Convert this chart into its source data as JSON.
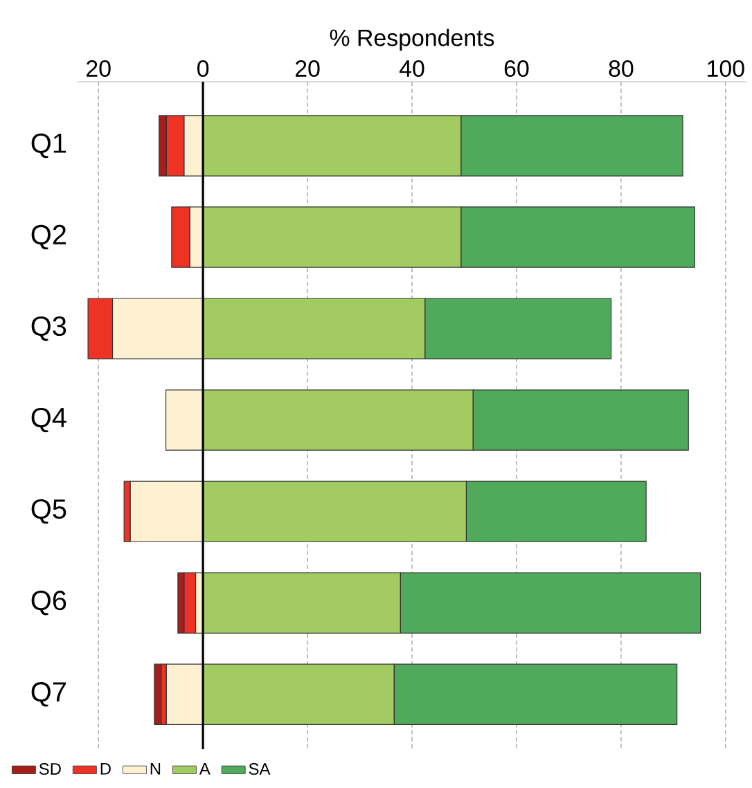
{
  "chart_data": {
    "type": "bar",
    "orientation": "horizontal",
    "xlabel": "% Respondents",
    "categories": [
      "Q1",
      "Q2",
      "Q3",
      "Q4",
      "Q5",
      "Q6",
      "Q7"
    ],
    "series": [
      {
        "name": "SD",
        "color": "#a51e1a",
        "values": [
          1.4,
          null,
          null,
          null,
          null,
          1.2,
          1.3
        ],
        "base": [
          -8.4,
          null,
          null,
          null,
          null,
          -4.8,
          -9.3
        ]
      },
      {
        "name": "D",
        "color": "#ee3224",
        "values": [
          3.4,
          3.5,
          4.7,
          null,
          1.2,
          2.2,
          1.0
        ],
        "base": [
          -7.0,
          -6.0,
          -22.0,
          null,
          -15.1,
          -3.6,
          -8.0
        ]
      },
      {
        "name": "N",
        "color": "#fdf1d2",
        "values": [
          3.6,
          2.5,
          17.3,
          7.1,
          13.9,
          1.4,
          7.0
        ],
        "base": [
          -3.6,
          -2.5,
          -17.3,
          -7.1,
          -13.9,
          -1.4,
          -7.0
        ]
      },
      {
        "name": "A",
        "color": "#a2cb62",
        "values": [
          49.4,
          49.4,
          42.5,
          51.7,
          50.4,
          37.8,
          36.6
        ],
        "base": [
          0,
          0,
          0,
          0,
          0,
          0,
          0
        ]
      },
      {
        "name": "SA",
        "color": "#4fab5b",
        "values": [
          42.4,
          44.7,
          35.6,
          41.2,
          34.4,
          57.4,
          54.1
        ],
        "base": [
          49.4,
          49.4,
          42.5,
          51.7,
          50.4,
          37.8,
          36.6
        ]
      }
    ],
    "xlim": [
      -24,
      104
    ],
    "xticks": [
      {
        "value": -20,
        "label": "20"
      },
      0,
      20,
      40,
      60,
      80,
      100
    ],
    "grid": "x",
    "legend": "bottom"
  }
}
